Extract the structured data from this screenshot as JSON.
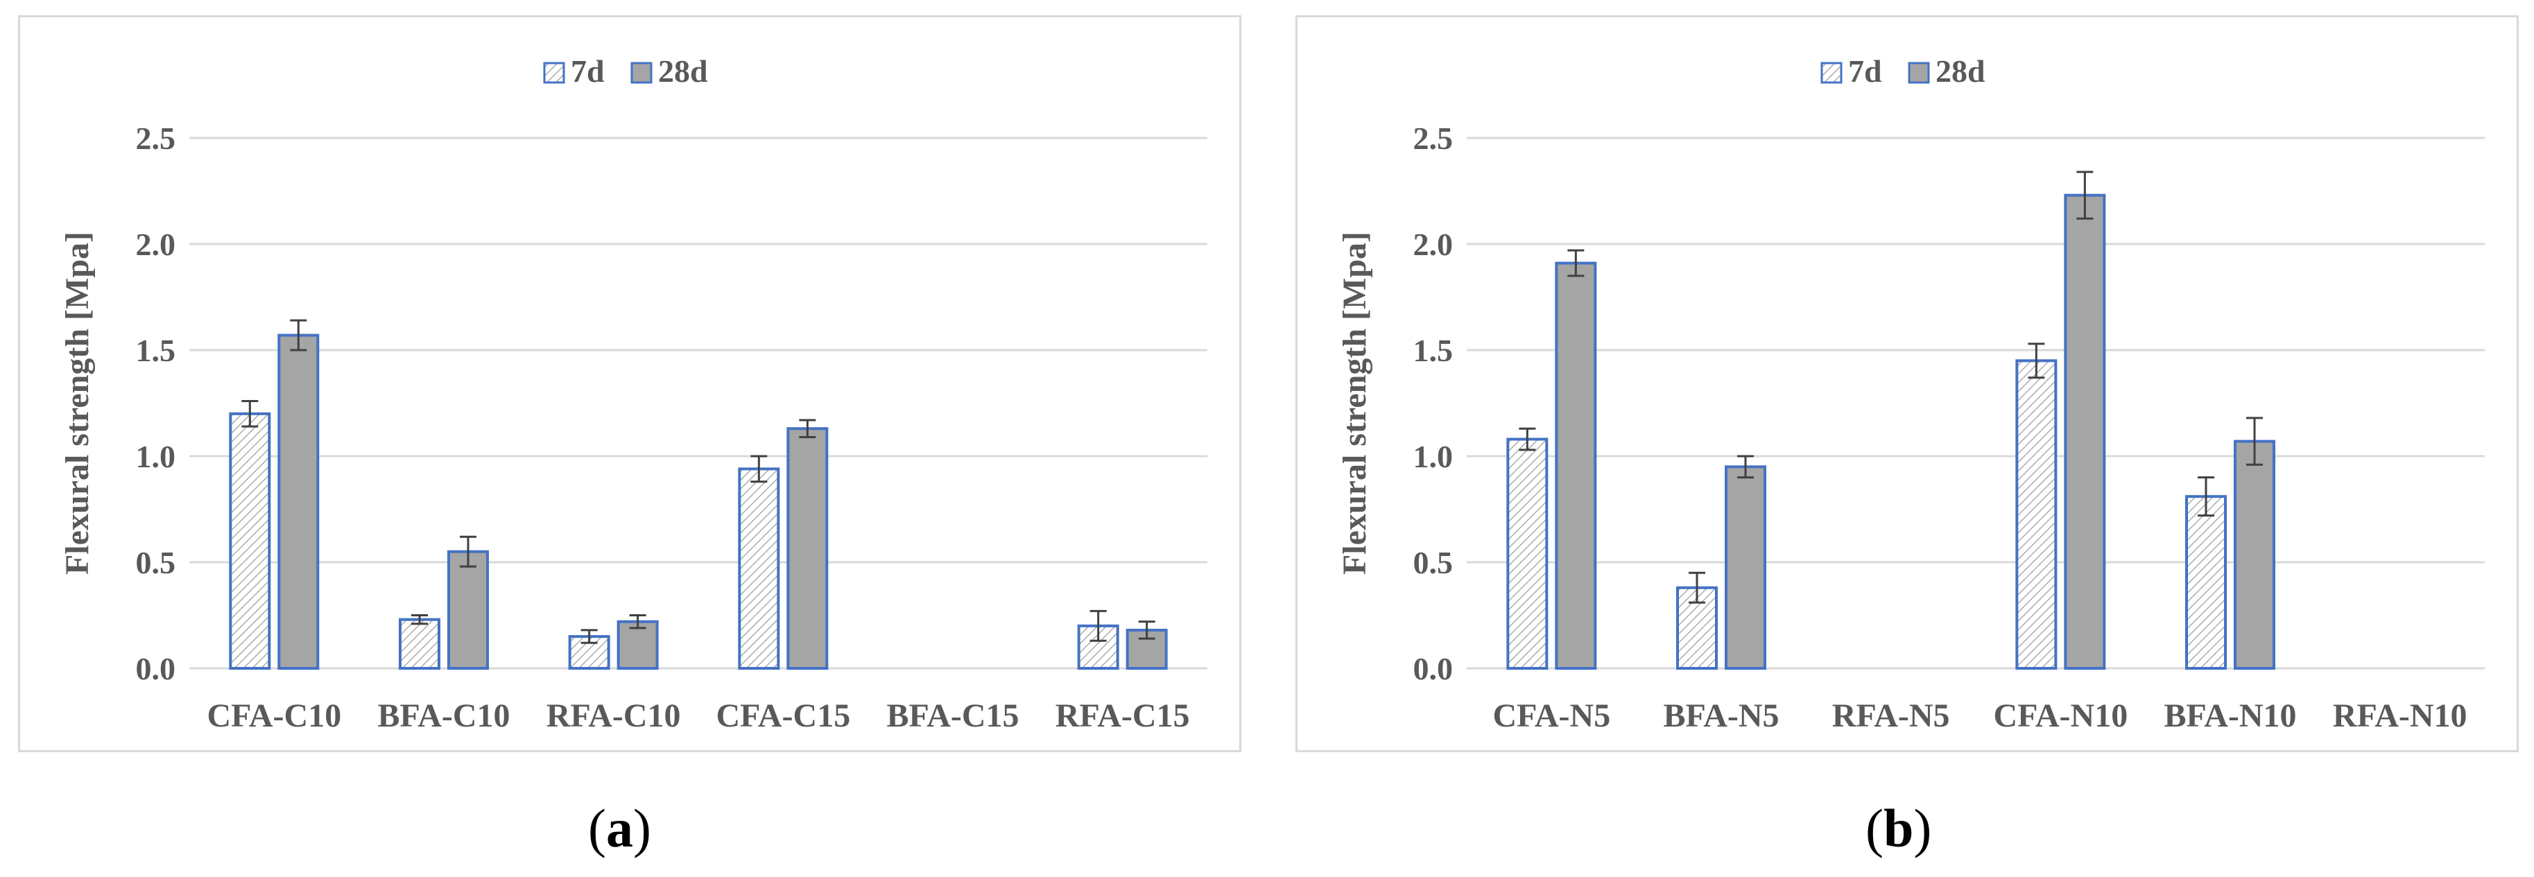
{
  "charts": [
    {
      "panel_label": "a",
      "type": "bar",
      "title": "",
      "xlabel": "",
      "ylabel": "Flexural strength [Mpa]",
      "ylim": [
        0,
        2.5
      ],
      "yticks": [
        "0.0",
        "0.5",
        "1.0",
        "1.5",
        "2.0",
        "2.5"
      ],
      "grid": true,
      "legend_position": "top-center",
      "categories": [
        "CFA-C10",
        "BFA-C10",
        "RFA-C10",
        "CFA-C15",
        "BFA-C15",
        "RFA-C15"
      ],
      "series": [
        {
          "name": "7d",
          "values": [
            1.2,
            0.23,
            0.15,
            0.94,
            null,
            0.2
          ],
          "errors": [
            0.06,
            0.02,
            0.03,
            0.06,
            null,
            0.07
          ]
        },
        {
          "name": "28d",
          "values": [
            1.57,
            0.55,
            0.22,
            1.13,
            null,
            0.18
          ],
          "errors": [
            0.07,
            0.07,
            0.03,
            0.04,
            null,
            0.04
          ]
        }
      ]
    },
    {
      "panel_label": "b",
      "type": "bar",
      "title": "",
      "xlabel": "",
      "ylabel": "Flexural strength [Mpa]",
      "ylim": [
        0,
        2.5
      ],
      "yticks": [
        "0.0",
        "0.5",
        "1.0",
        "1.5",
        "2.0",
        "2.5"
      ],
      "grid": true,
      "legend_position": "top-center",
      "categories": [
        "CFA-N5",
        "BFA-N5",
        "RFA-N5",
        "CFA-N10",
        "BFA-N10",
        "RFA-N10"
      ],
      "series": [
        {
          "name": "7d",
          "values": [
            1.08,
            0.38,
            null,
            1.45,
            0.81,
            null
          ],
          "errors": [
            0.05,
            0.07,
            null,
            0.08,
            0.09,
            null
          ]
        },
        {
          "name": "28d",
          "values": [
            1.91,
            0.95,
            null,
            2.23,
            1.07,
            null
          ],
          "errors": [
            0.06,
            0.05,
            null,
            0.11,
            0.11,
            null
          ]
        }
      ]
    }
  ],
  "chart_data": [
    {
      "type": "bar",
      "categories": [
        "CFA-C10",
        "BFA-C10",
        "RFA-C10",
        "CFA-C15",
        "BFA-C15",
        "RFA-C15"
      ],
      "series": [
        {
          "name": "7d",
          "values": [
            1.2,
            0.23,
            0.15,
            0.94,
            null,
            0.2
          ]
        },
        {
          "name": "28d",
          "values": [
            1.57,
            0.55,
            0.22,
            1.13,
            null,
            0.18
          ]
        }
      ],
      "ylabel": "Flexural strength [Mpa]",
      "ylim": [
        0,
        2.5
      ]
    },
    {
      "type": "bar",
      "categories": [
        "CFA-N5",
        "BFA-N5",
        "RFA-N5",
        "CFA-N10",
        "BFA-N10",
        "RFA-N10"
      ],
      "series": [
        {
          "name": "7d",
          "values": [
            1.08,
            0.38,
            null,
            1.45,
            0.81,
            null
          ]
        },
        {
          "name": "28d",
          "values": [
            1.91,
            0.95,
            null,
            2.23,
            1.07,
            null
          ]
        }
      ],
      "ylabel": "Flexural strength [Mpa]",
      "ylim": [
        0,
        2.5
      ]
    }
  ],
  "colors": {
    "bar_outline": "#4472c4",
    "bar_28d_fill": "#a5a5a5",
    "hatch": "#9c9c9c",
    "grid": "#d9d9d9",
    "axis_text": "#595959",
    "error_bar": "#404040"
  },
  "captions": {
    "a": "a",
    "b": "b"
  }
}
